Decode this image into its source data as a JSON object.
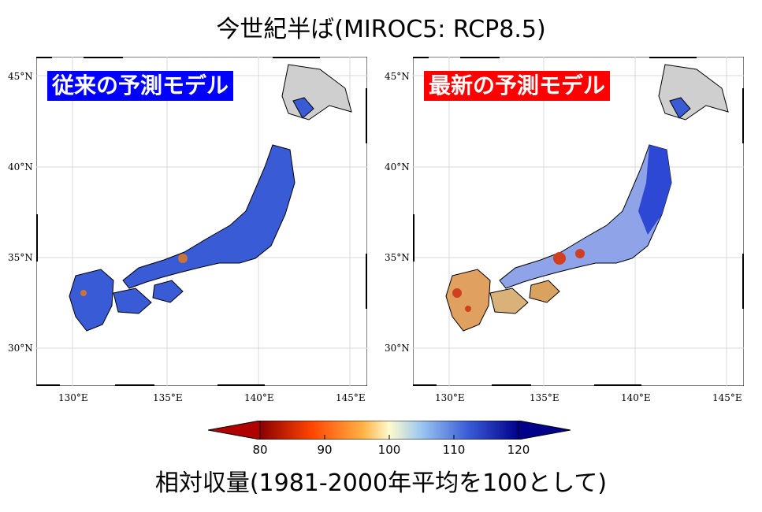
{
  "title": "今世紀半ば(MIROC5: RCP8.5)",
  "panels": [
    {
      "label": "従来の予測モデル",
      "label_color": "#0000ff"
    },
    {
      "label": "最新の予測モデル",
      "label_color": "#ff0000"
    }
  ],
  "lat_labels": [
    "45°N",
    "40°N",
    "35°N",
    "30°N"
  ],
  "lon_labels": [
    "130°E",
    "135°E",
    "140°E",
    "145°E"
  ],
  "colorbar": {
    "ticks": [
      "80",
      "90",
      "100",
      "110",
      "120"
    ],
    "colors": [
      "#8b0000",
      "#ff4500",
      "#ffa500",
      "#fffacd",
      "#87cefa",
      "#4169e1",
      "#00008b"
    ]
  },
  "caption": "相対収量(1981-2000年平均を100として)"
}
